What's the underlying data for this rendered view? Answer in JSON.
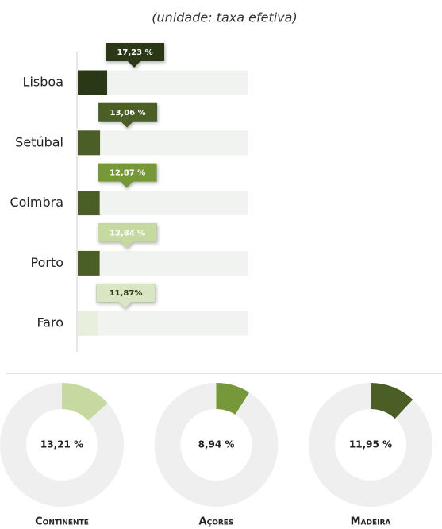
{
  "chart_data": [
    {
      "type": "bar",
      "subtitle": "(unidade: taxa efetiva)",
      "categories": [
        "Lisboa",
        "Setúbal",
        "Coimbra",
        "Porto",
        "Faro"
      ],
      "values": [
        17.23,
        13.06,
        12.87,
        12.84,
        11.87
      ],
      "value_labels": [
        "17,23 %",
        "13,06 %",
        "12,87 %",
        "12,84 %",
        "11,87%"
      ],
      "colors": [
        "#2b3818",
        "#4a5e25",
        "#4a5e25",
        "#4a5e25",
        "#e9efdd"
      ],
      "label_colors": [
        "#2b3818",
        "#4a5e25",
        "#76973a",
        "#c5d9a0",
        "#d9e6c3"
      ],
      "xlim": [
        0,
        100
      ]
    },
    {
      "type": "pie",
      "title": "Continente",
      "values": [
        13.21
      ],
      "value_labels": [
        "13,21 %"
      ],
      "color": "#c5d9a0"
    },
    {
      "type": "pie",
      "title": "Açores",
      "values": [
        8.94
      ],
      "value_labels": [
        "8,94 %"
      ],
      "color": "#76973a"
    },
    {
      "type": "pie",
      "title": "Madeira",
      "values": [
        11.95
      ],
      "value_labels": [
        "11,95 %"
      ],
      "color": "#4a5e25"
    }
  ]
}
